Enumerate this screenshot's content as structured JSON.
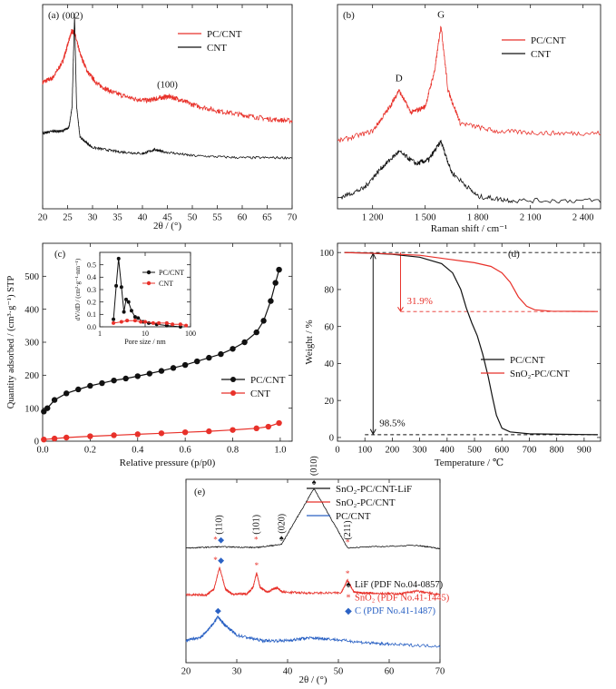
{
  "chart_data": [
    {
      "type": "line",
      "panel_label": "(a)",
      "xlabel": "2θ / (°)",
      "xlim": [
        20,
        70
      ],
      "xticks": [
        20,
        25,
        30,
        35,
        40,
        45,
        50,
        55,
        60,
        65,
        70
      ],
      "ylim": [
        0,
        1
      ],
      "legend_position": "top-right",
      "annotations": [
        {
          "text": "(002)",
          "x": 26
        },
        {
          "text": "(100)",
          "x": 45
        }
      ],
      "series": [
        {
          "name": "PC/CNT",
          "color": "#e8312a",
          "noise": 0.012,
          "points": [
            [
              20,
              0.62
            ],
            [
              22,
              0.64
            ],
            [
              24,
              0.72
            ],
            [
              25,
              0.8
            ],
            [
              25.8,
              0.87
            ],
            [
              26.4,
              0.86
            ],
            [
              27.5,
              0.76
            ],
            [
              29,
              0.67
            ],
            [
              31,
              0.61
            ],
            [
              34,
              0.57
            ],
            [
              38,
              0.54
            ],
            [
              41,
              0.53
            ],
            [
              43,
              0.54
            ],
            [
              45,
              0.55
            ],
            [
              47,
              0.54
            ],
            [
              50,
              0.51
            ],
            [
              55,
              0.48
            ],
            [
              60,
              0.46
            ],
            [
              65,
              0.44
            ],
            [
              70,
              0.43
            ]
          ]
        },
        {
          "name": "CNT",
          "color": "#111111",
          "noise": 0.006,
          "points": [
            [
              20,
              0.37
            ],
            [
              22,
              0.38
            ],
            [
              24,
              0.38
            ],
            [
              25.3,
              0.4
            ],
            [
              25.9,
              0.5
            ],
            [
              26.4,
              0.95
            ],
            [
              26.8,
              0.5
            ],
            [
              27.5,
              0.35
            ],
            [
              30,
              0.3
            ],
            [
              35,
              0.28
            ],
            [
              40,
              0.27
            ],
            [
              42.5,
              0.29
            ],
            [
              44,
              0.28
            ],
            [
              50,
              0.26
            ],
            [
              60,
              0.25
            ],
            [
              70,
              0.25
            ]
          ]
        }
      ]
    },
    {
      "type": "line",
      "panel_label": "(b)",
      "xlabel": "Raman shift / cm⁻¹",
      "xlim": [
        1000,
        2500
      ],
      "xticks": [
        1200,
        1500,
        1800,
        2100,
        2400
      ],
      "xticklabels": [
        "1 200",
        "1 500",
        "1 800",
        "2 100",
        "2 400"
      ],
      "ylim": [
        0,
        1
      ],
      "legend_position": "top-right",
      "annotations": [
        {
          "text": "D",
          "x": 1350
        },
        {
          "text": "G",
          "x": 1590
        }
      ],
      "series": [
        {
          "name": "PC/CNT",
          "color": "#e8312a",
          "noise": 0.012,
          "points": [
            [
              1000,
              0.33
            ],
            [
              1200,
              0.38
            ],
            [
              1300,
              0.5
            ],
            [
              1350,
              0.58
            ],
            [
              1420,
              0.47
            ],
            [
              1500,
              0.5
            ],
            [
              1555,
              0.68
            ],
            [
              1590,
              0.9
            ],
            [
              1630,
              0.58
            ],
            [
              1700,
              0.42
            ],
            [
              1900,
              0.38
            ],
            [
              2200,
              0.37
            ],
            [
              2500,
              0.37
            ]
          ]
        },
        {
          "name": "CNT",
          "color": "#111111",
          "noise": 0.012,
          "points": [
            [
              1000,
              0.05
            ],
            [
              1150,
              0.1
            ],
            [
              1250,
              0.2
            ],
            [
              1350,
              0.28
            ],
            [
              1450,
              0.22
            ],
            [
              1520,
              0.24
            ],
            [
              1590,
              0.33
            ],
            [
              1650,
              0.18
            ],
            [
              1800,
              0.06
            ],
            [
              2000,
              0.04
            ],
            [
              2500,
              0.04
            ]
          ]
        }
      ]
    },
    {
      "type": "line",
      "panel_label": "(c)",
      "xlabel": "Relative pressure (p/p0)",
      "ylabel": "Quantity adsorbed / (cm³·g⁻¹) STP",
      "xlim": [
        0,
        1.05
      ],
      "xticks": [
        0.0,
        0.2,
        0.4,
        0.6,
        0.8,
        1.0
      ],
      "xticklabels": [
        "0.0",
        "0.2",
        "0.4",
        "0.6",
        "0.8",
        "1.0"
      ],
      "ylim": [
        0,
        600
      ],
      "yticks": [
        0,
        100,
        200,
        300,
        400,
        500
      ],
      "legend_position": "right",
      "series": [
        {
          "name": "PC/CNT",
          "color": "#111111",
          "marker": "circle",
          "points": [
            [
              0.005,
              90
            ],
            [
              0.02,
              100
            ],
            [
              0.05,
              125
            ],
            [
              0.1,
              145
            ],
            [
              0.15,
              157
            ],
            [
              0.2,
              168
            ],
            [
              0.25,
              176
            ],
            [
              0.3,
              184
            ],
            [
              0.35,
              190
            ],
            [
              0.4,
              197
            ],
            [
              0.45,
              205
            ],
            [
              0.5,
              213
            ],
            [
              0.55,
              222
            ],
            [
              0.6,
              231
            ],
            [
              0.65,
              242
            ],
            [
              0.7,
              253
            ],
            [
              0.75,
              264
            ],
            [
              0.8,
              280
            ],
            [
              0.85,
              300
            ],
            [
              0.9,
              330
            ],
            [
              0.93,
              365
            ],
            [
              0.96,
              425
            ],
            [
              0.98,
              480
            ],
            [
              0.995,
              520
            ]
          ]
        },
        {
          "name": "CNT",
          "color": "#e8312a",
          "marker": "circle",
          "points": [
            [
              0.005,
              5
            ],
            [
              0.05,
              8
            ],
            [
              0.1,
              11
            ],
            [
              0.2,
              15
            ],
            [
              0.3,
              18
            ],
            [
              0.4,
              21
            ],
            [
              0.5,
              24
            ],
            [
              0.6,
              27
            ],
            [
              0.7,
              30
            ],
            [
              0.8,
              34
            ],
            [
              0.9,
              39
            ],
            [
              0.95,
              44
            ],
            [
              0.995,
              55
            ]
          ]
        }
      ],
      "inset": {
        "xlabel": "Pore size / nm",
        "ylabel": "dV/dD / (cm³·g⁻¹·nm⁻¹)",
        "xscale": "log",
        "xlim": [
          1,
          100
        ],
        "xticks": [
          1,
          10,
          100
        ],
        "ylim": [
          0,
          0.6
        ],
        "yticks": [
          0.0,
          0.1,
          0.2,
          0.3,
          0.4,
          0.5
        ],
        "yticklabels": [
          "0.0",
          "0.1",
          "0.2",
          "0.3",
          "0.4",
          "0.5"
        ],
        "series": [
          {
            "name": "PC/CNT",
            "color": "#111111",
            "points": [
              [
                2,
                0.06
              ],
              [
                2.3,
                0.33
              ],
              [
                2.6,
                0.55
              ],
              [
                3,
                0.32
              ],
              [
                3.4,
                0.12
              ],
              [
                3.8,
                0.22
              ],
              [
                4.3,
                0.2
              ],
              [
                5,
                0.13
              ],
              [
                6,
                0.08
              ],
              [
                7,
                0.07
              ],
              [
                9,
                0.04
              ],
              [
                12,
                0.03
              ],
              [
                18,
                0.02
              ],
              [
                30,
                0.01
              ],
              [
                60,
                0.0
              ]
            ]
          },
          {
            "name": "CNT",
            "color": "#e8312a",
            "points": [
              [
                2,
                0.03
              ],
              [
                3,
                0.04
              ],
              [
                4,
                0.05
              ],
              [
                6,
                0.05
              ],
              [
                8,
                0.04
              ],
              [
                10,
                0.04
              ],
              [
                15,
                0.03
              ],
              [
                20,
                0.03
              ],
              [
                30,
                0.03
              ],
              [
                40,
                0.02
              ],
              [
                60,
                0.02
              ],
              [
                80,
                0.01
              ]
            ]
          }
        ]
      }
    },
    {
      "type": "line",
      "panel_label": "(d)",
      "xlabel": "Temperature / ℃",
      "ylabel": "Weight / %",
      "xlim": [
        0,
        960
      ],
      "xticks": [
        0,
        100,
        200,
        300,
        400,
        500,
        600,
        700,
        800,
        900
      ],
      "ylim": [
        -2,
        105
      ],
      "yticks": [
        0,
        20,
        40,
        60,
        80,
        100
      ],
      "legend_position": "bottom-right",
      "annotations": [
        {
          "text": "31.9%",
          "x": 230,
          "y": 74,
          "color": "#e8312a"
        },
        {
          "text": "98.5%",
          "x": 130,
          "y": 8,
          "color": "#111111"
        }
      ],
      "series": [
        {
          "name": "PC/CNT",
          "color": "#111111",
          "points": [
            [
              25,
              100
            ],
            [
              100,
              99.8
            ],
            [
              200,
              99
            ],
            [
              300,
              97.5
            ],
            [
              380,
              94
            ],
            [
              420,
              89
            ],
            [
              450,
              80
            ],
            [
              470,
              70
            ],
            [
              490,
              62
            ],
            [
              510,
              55
            ],
            [
              530,
              45
            ],
            [
              550,
              33
            ],
            [
              565,
              22
            ],
            [
              580,
              12
            ],
            [
              600,
              5
            ],
            [
              630,
              3
            ],
            [
              700,
              2
            ],
            [
              950,
              1.5
            ]
          ]
        },
        {
          "name": "SnO₂-PC/CNT",
          "color": "#e8312a",
          "points": [
            [
              25,
              100
            ],
            [
              150,
              99.5
            ],
            [
              300,
              98.5
            ],
            [
              400,
              96.5
            ],
            [
              500,
              94.5
            ],
            [
              560,
              92.5
            ],
            [
              600,
              89
            ],
            [
              630,
              84
            ],
            [
              660,
              76
            ],
            [
              690,
              71
            ],
            [
              720,
              69
            ],
            [
              780,
              68.3
            ],
            [
              950,
              68.1
            ]
          ]
        }
      ]
    },
    {
      "type": "line",
      "panel_label": "(e)",
      "xlabel": "2θ / (°)",
      "xlim": [
        20,
        70
      ],
      "xticks": [
        20,
        30,
        40,
        50,
        60,
        70
      ],
      "ylim": [
        0,
        1
      ],
      "legend_position": "top-right",
      "annotations": [
        {
          "text": "(110)",
          "x": 26.5
        },
        {
          "text": "(101)",
          "x": 33.8
        },
        {
          "text": "(020)",
          "x": 38.8
        },
        {
          "text": "(010)",
          "x": 45.2
        },
        {
          "text": "(211)",
          "x": 51.8
        }
      ],
      "phase_legend": [
        {
          "marker": "♠",
          "text": "LiF (PDF No.04-0857)",
          "color": "#111111"
        },
        {
          "marker": "*",
          "text": "SnO₂ (PDF No.41-1445)",
          "color": "#e8312a"
        },
        {
          "marker": "◆",
          "text": "C (PDF No.41-1487)",
          "color": "#2b62c4"
        }
      ],
      "series": [
        {
          "name": "SnO₂-PC/CNT-LiF",
          "color": "#111111",
          "noise": 0.003,
          "base": 0.62,
          "points": [
            [
              20,
              0.625
            ],
            [
              26.5,
              0.632
            ],
            [
              33.8,
              0.628
            ],
            [
              38.8,
              0.645
            ],
            [
              45.2,
              0.95
            ],
            [
              51.8,
              0.627
            ],
            [
              65.5,
              0.64
            ],
            [
              70,
              0.622
            ]
          ]
        },
        {
          "name": "SnO₂-PC/CNT",
          "color": "#e8312a",
          "noise": 0.006,
          "points": [
            [
              20,
              0.37
            ],
            [
              24,
              0.37
            ],
            [
              25.5,
              0.4
            ],
            [
              26.6,
              0.52
            ],
            [
              27.8,
              0.4
            ],
            [
              29,
              0.375
            ],
            [
              32,
              0.375
            ],
            [
              33.2,
              0.41
            ],
            [
              33.9,
              0.49
            ],
            [
              34.6,
              0.41
            ],
            [
              36,
              0.385
            ],
            [
              37.9,
              0.41
            ],
            [
              39,
              0.385
            ],
            [
              44,
              0.38
            ],
            [
              50.5,
              0.38
            ],
            [
              51.8,
              0.45
            ],
            [
              53,
              0.385
            ],
            [
              55,
              0.38
            ],
            [
              57,
              0.38
            ],
            [
              62,
              0.375
            ],
            [
              65.5,
              0.39
            ],
            [
              70,
              0.37
            ]
          ]
        },
        {
          "name": "PC/CNT",
          "color": "#2b62c4",
          "noise": 0.008,
          "points": [
            [
              20,
              0.12
            ],
            [
              23,
              0.14
            ],
            [
              25,
              0.2
            ],
            [
              26.3,
              0.25
            ],
            [
              27.5,
              0.21
            ],
            [
              30,
              0.15
            ],
            [
              35,
              0.12
            ],
            [
              40,
              0.12
            ],
            [
              44,
              0.135
            ],
            [
              48,
              0.13
            ],
            [
              55,
              0.11
            ],
            [
              60,
              0.1
            ],
            [
              70,
              0.09
            ]
          ]
        }
      ]
    }
  ]
}
